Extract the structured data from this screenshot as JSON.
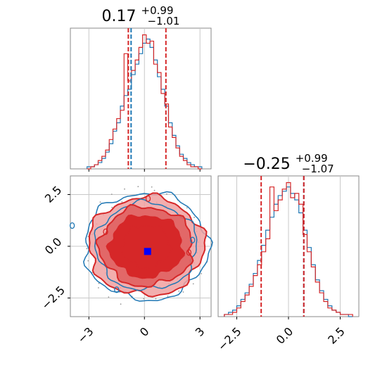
{
  "chart_data": {
    "type": "corner",
    "series": [
      {
        "name": "",
        "color": "#1f77b4"
      },
      {
        "name": "",
        "color": "#d62728"
      }
    ],
    "grid": true,
    "param1": {
      "title_main": "0.17",
      "title_sup": "+0.99",
      "title_sub": "−1.01",
      "xlim": [
        -4.0,
        3.6
      ],
      "xticks": [
        -3,
        0,
        3
      ],
      "xtick_labels": [
        "−3",
        "0",
        "3"
      ],
      "quantiles_series1": [
        -0.72
      ],
      "quantiles_series2": [
        -0.87,
        1.16
      ],
      "hist_x": [
        -3.0,
        -2.8,
        -2.6,
        -2.4,
        -2.2,
        -2.0,
        -1.8,
        -1.6,
        -1.4,
        -1.2,
        -1.0,
        -0.8,
        -0.6,
        -0.4,
        -0.2,
        0.0,
        0.2,
        0.4,
        0.6,
        0.8,
        1.0,
        1.2,
        1.4,
        1.6,
        1.8,
        2.0,
        2.2,
        2.4,
        2.6,
        2.8,
        3.0
      ],
      "hist_series1": [
        1,
        1,
        2,
        3,
        5,
        8,
        12,
        18,
        22,
        30,
        35,
        38,
        45,
        50,
        55,
        60,
        62,
        58,
        52,
        44,
        38,
        30,
        22,
        16,
        11,
        7,
        5,
        3,
        2,
        1,
        1
      ],
      "hist_series2": [
        0,
        1,
        2,
        4,
        6,
        9,
        14,
        19,
        24,
        28,
        55,
        42,
        47,
        52,
        58,
        64,
        60,
        61,
        50,
        46,
        36,
        31,
        20,
        15,
        10,
        6,
        4,
        2,
        1,
        1,
        0
      ]
    },
    "param2": {
      "title_main": "−0.25",
      "title_sup": "+0.99",
      "title_sub": "−1.07",
      "xlim": [
        -3.4,
        3.4
      ],
      "xticks": [
        -2.5,
        0.0,
        2.5
      ],
      "xtick_labels": [
        "−2.5",
        "0.0",
        "2.5"
      ],
      "ylim": [
        -3.4,
        3.4
      ],
      "yticks": [
        -2.5,
        0.0,
        2.5
      ],
      "ytick_labels": [
        "−2.5",
        "0.0",
        "2.5"
      ],
      "quantiles_series1": [
        0.74
      ],
      "quantiles_series2": [
        -1.32,
        0.74
      ],
      "hist_x": [
        -3.0,
        -2.8,
        -2.6,
        -2.4,
        -2.2,
        -2.0,
        -1.8,
        -1.6,
        -1.4,
        -1.2,
        -1.0,
        -0.8,
        -0.6,
        -0.4,
        -0.2,
        0.0,
        0.2,
        0.4,
        0.6,
        0.8,
        1.0,
        1.2,
        1.4,
        1.6,
        1.8,
        2.0,
        2.2,
        2.4,
        2.6,
        2.8,
        3.0
      ],
      "hist_series1": [
        1,
        2,
        3,
        5,
        8,
        11,
        15,
        20,
        26,
        33,
        40,
        46,
        52,
        56,
        58,
        60,
        57,
        54,
        48,
        40,
        32,
        24,
        17,
        12,
        8,
        5,
        3,
        2,
        1,
        1,
        0
      ],
      "hist_series2": [
        1,
        1,
        2,
        4,
        7,
        10,
        14,
        19,
        24,
        30,
        36,
        60,
        49,
        54,
        59,
        62,
        55,
        57,
        52,
        38,
        30,
        23,
        16,
        11,
        7,
        4,
        3,
        2,
        1,
        1,
        1
      ]
    },
    "marker": {
      "x": 0.17,
      "y": -0.25,
      "color": "#0000ff"
    }
  }
}
